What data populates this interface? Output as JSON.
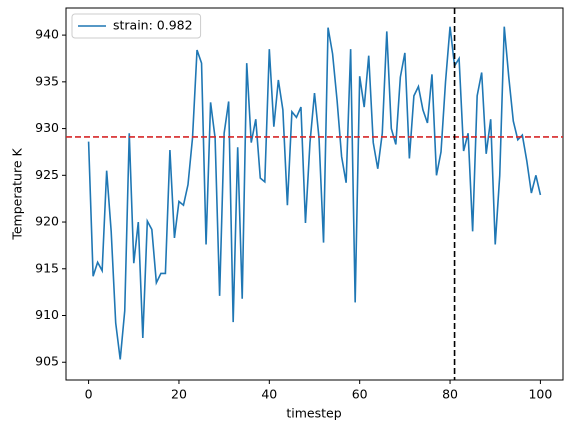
{
  "chart_data": {
    "type": "line",
    "xlabel": "timestep",
    "ylabel": "Temperature K",
    "x": [
      0,
      1,
      2,
      3,
      4,
      5,
      6,
      7,
      8,
      9,
      10,
      11,
      12,
      13,
      14,
      15,
      16,
      17,
      18,
      19,
      20,
      21,
      22,
      23,
      24,
      25,
      26,
      27,
      28,
      29,
      30,
      31,
      32,
      33,
      34,
      35,
      36,
      37,
      38,
      39,
      40,
      41,
      42,
      43,
      44,
      45,
      46,
      47,
      48,
      49,
      50,
      51,
      52,
      53,
      54,
      55,
      56,
      57,
      58,
      59,
      60,
      61,
      62,
      63,
      64,
      65,
      66,
      67,
      68,
      69,
      70,
      71,
      72,
      73,
      74,
      75,
      76,
      77,
      78,
      79,
      80,
      81,
      82,
      83,
      84,
      85,
      86,
      87,
      88,
      89,
      90,
      91,
      92,
      93,
      94,
      95,
      96,
      97,
      98,
      99,
      100
    ],
    "series": [
      {
        "name": "strain: 0.982",
        "color": "#1f77b4",
        "values": [
          928.6,
          914.2,
          915.7,
          914.8,
          925.5,
          919.0,
          909.2,
          905.3,
          910.5,
          929.5,
          915.6,
          920.0,
          907.6,
          920.1,
          919.2,
          913.5,
          914.5,
          914.5,
          927.7,
          918.3,
          922.2,
          921.8,
          924.0,
          929.0,
          938.4,
          937.0,
          917.6,
          932.8,
          929.0,
          912.1,
          929.5,
          932.9,
          909.3,
          928.0,
          911.8,
          937.0,
          928.5,
          931.0,
          924.7,
          924.3,
          938.5,
          930.2,
          935.2,
          932.0,
          921.8,
          931.8,
          931.2,
          932.3,
          919.9,
          928.5,
          933.8,
          929.0,
          917.8,
          940.8,
          938.0,
          933.0,
          927.0,
          924.2,
          938.5,
          911.4,
          935.6,
          932.3,
          937.8,
          928.5,
          925.7,
          929.5,
          940.4,
          930.0,
          928.3,
          935.5,
          938.1,
          926.8,
          933.5,
          934.5,
          932.0,
          930.6,
          935.8,
          925.0,
          927.5,
          935.0,
          940.9,
          936.7,
          937.5,
          927.6,
          929.5,
          919.0,
          933.5,
          936.0,
          927.3,
          931.0,
          917.6,
          925.0,
          940.9,
          935.5,
          930.8,
          928.8,
          929.3,
          926.5,
          923.1,
          925.0,
          922.9
        ]
      }
    ],
    "hline": {
      "value": 929.1,
      "color": "#d62728"
    },
    "vline": {
      "value": 81,
      "color": "#000000"
    },
    "xlim": [
      -5,
      105
    ],
    "ylim": [
      903.1,
      942.9
    ],
    "xticks": [
      0,
      20,
      40,
      60,
      80,
      100
    ],
    "yticks": [
      905,
      910,
      915,
      920,
      925,
      930,
      935,
      940
    ],
    "legend": "upper left",
    "grid": false
  }
}
